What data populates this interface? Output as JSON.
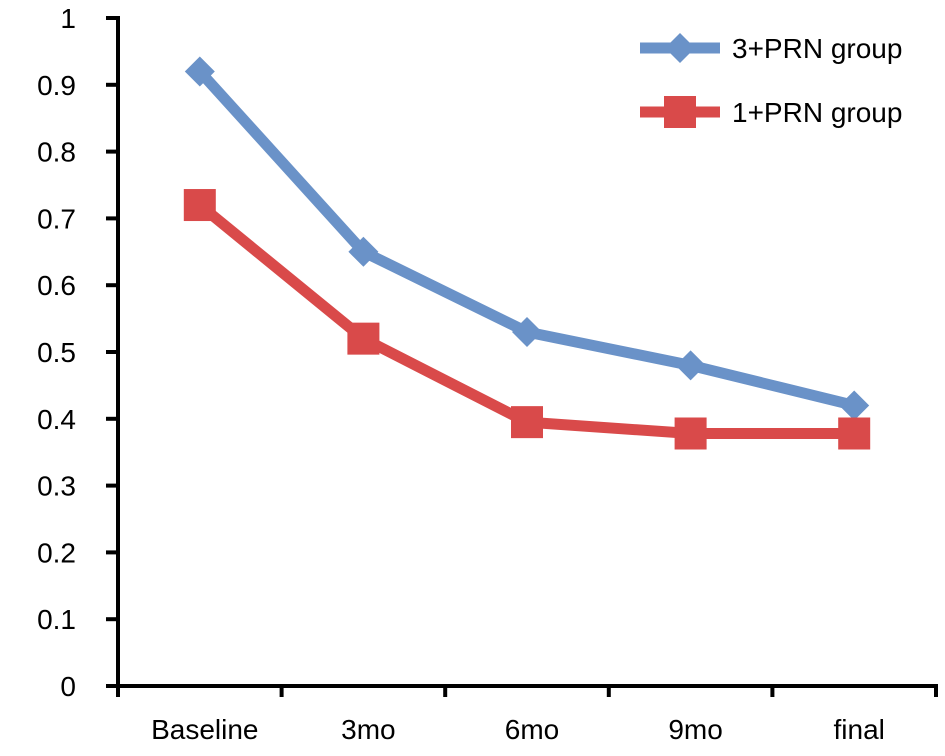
{
  "chart_data": {
    "type": "line",
    "categories": [
      "Baseline",
      "3mo",
      "6mo",
      "9mo",
      "final"
    ],
    "series": [
      {
        "name": "3+PRN group",
        "values": [
          0.92,
          0.65,
          0.53,
          0.48,
          0.42
        ],
        "color": "#6a92c8",
        "marker": "diamond"
      },
      {
        "name": "1+PRN group",
        "values": [
          0.72,
          0.52,
          0.395,
          0.378,
          0.378
        ],
        "color": "#d94a4a",
        "marker": "square"
      }
    ],
    "title": "",
    "xlabel": "",
    "ylabel": "",
    "ylim": [
      0,
      1
    ],
    "yticks": [
      "0",
      "0.1",
      "0.2",
      "0.3",
      "0.4",
      "0.5",
      "0.6",
      "0.7",
      "0.8",
      "0.9",
      "1"
    ],
    "grid": false,
    "legend": "top-right"
  }
}
